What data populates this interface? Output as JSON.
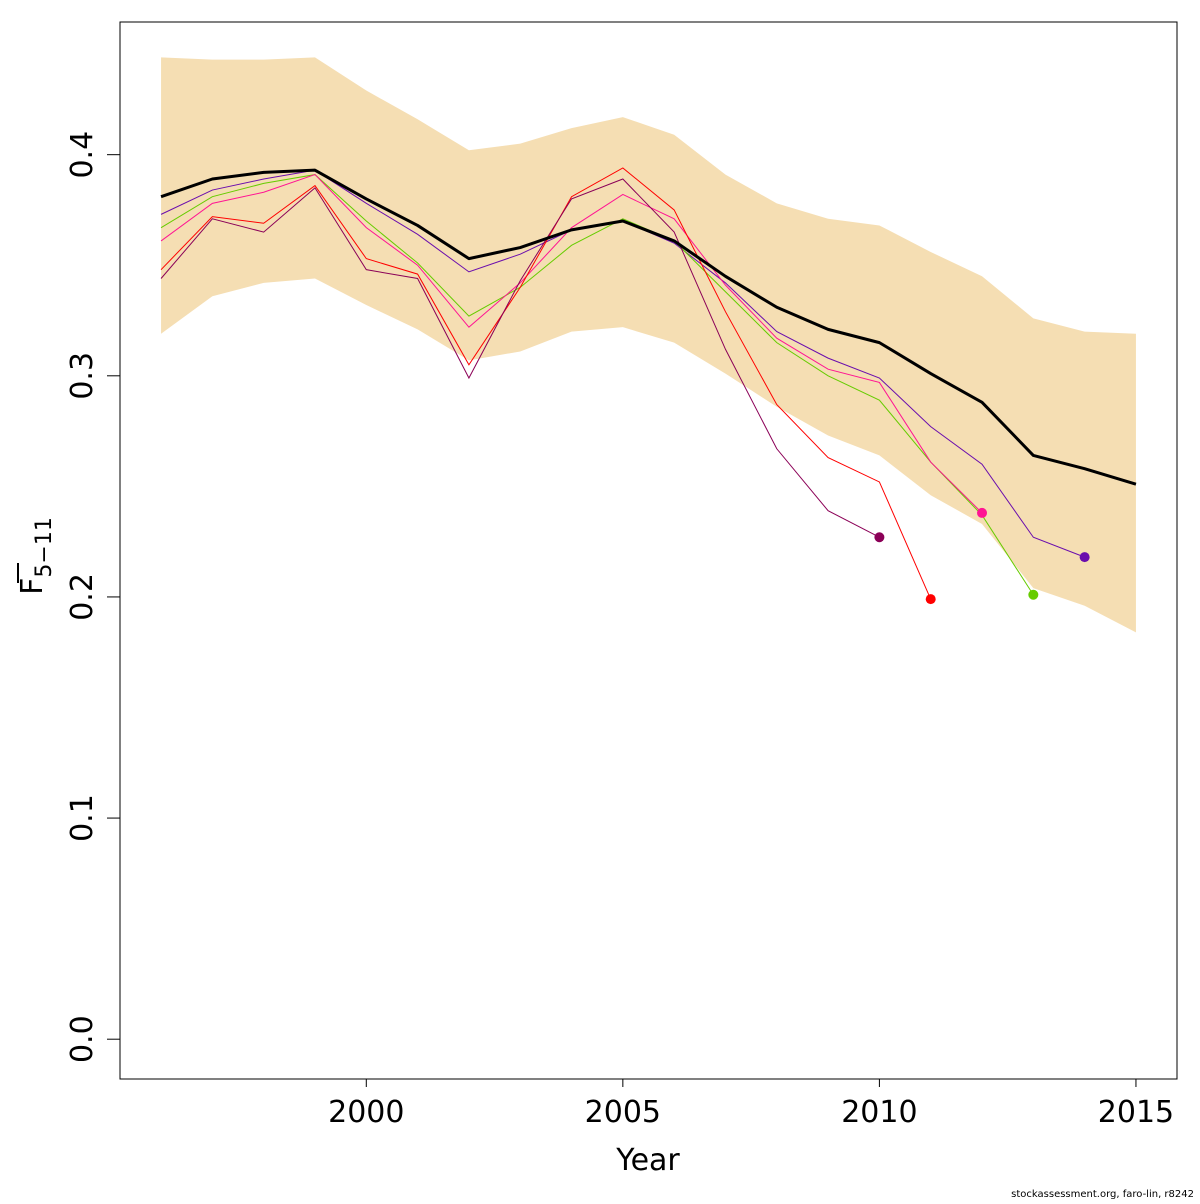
{
  "chart_data": {
    "type": "line",
    "xlabel": "Year",
    "ylabel": "F",
    "ylabel_sub": "5−11",
    "xlim": [
      1995.2,
      2015.8
    ],
    "ylim": [
      -0.018,
      0.46
    ],
    "x_ticks": [
      2000,
      2005,
      2010,
      2015
    ],
    "y_ticks": [
      0.0,
      0.1,
      0.2,
      0.3,
      0.4
    ],
    "x_tick_labels": [
      "2000",
      "2005",
      "2010",
      "2015"
    ],
    "y_tick_labels": [
      "0.0",
      "0.1",
      "0.2",
      "0.3",
      "0.4"
    ],
    "grid": false,
    "credit": "stockassessment.org, faro-lin, r8242",
    "colors": {
      "band": "#f5deb3",
      "base": "#000000"
    },
    "band": {
      "x": [
        1996,
        1997,
        1998,
        1999,
        2000,
        2001,
        2002,
        2003,
        2004,
        2005,
        2006,
        2007,
        2008,
        2009,
        2010,
        2011,
        2012,
        2013,
        2014,
        2015
      ],
      "upper": [
        0.444,
        0.443,
        0.443,
        0.444,
        0.429,
        0.416,
        0.402,
        0.405,
        0.412,
        0.417,
        0.409,
        0.391,
        0.378,
        0.371,
        0.368,
        0.356,
        0.345,
        0.326,
        0.32,
        0.319
      ],
      "lower": [
        0.319,
        0.336,
        0.342,
        0.344,
        0.332,
        0.321,
        0.307,
        0.311,
        0.32,
        0.322,
        0.315,
        0.301,
        0.286,
        0.273,
        0.264,
        0.246,
        0.233,
        0.204,
        0.196,
        0.184
      ]
    },
    "base": {
      "x": [
        1996,
        1997,
        1998,
        1999,
        2000,
        2001,
        2002,
        2003,
        2004,
        2005,
        2006,
        2007,
        2008,
        2009,
        2010,
        2011,
        2012,
        2013,
        2014,
        2015
      ],
      "values": [
        0.381,
        0.389,
        0.392,
        0.393,
        0.38,
        0.368,
        0.353,
        0.358,
        0.366,
        0.37,
        0.361,
        0.345,
        0.331,
        0.321,
        0.315,
        0.301,
        0.288,
        0.264,
        0.258,
        0.251
      ]
    },
    "series": [
      {
        "color": "#6a0dad",
        "x": [
          1996,
          1997,
          1998,
          1999,
          2000,
          2001,
          2002,
          2003,
          2004,
          2005,
          2006,
          2007,
          2008,
          2009,
          2010,
          2011,
          2012,
          2013,
          2014
        ],
        "values": [
          0.373,
          0.384,
          0.389,
          0.393,
          0.378,
          0.364,
          0.347,
          0.355,
          0.366,
          0.37,
          0.36,
          0.342,
          0.32,
          0.308,
          0.299,
          0.277,
          0.26,
          0.227,
          0.218
        ]
      },
      {
        "color": "#66cc00",
        "x": [
          1996,
          1997,
          1998,
          1999,
          2000,
          2001,
          2002,
          2003,
          2004,
          2005,
          2006,
          2007,
          2008,
          2009,
          2010,
          2011,
          2012,
          2013
        ],
        "values": [
          0.367,
          0.381,
          0.387,
          0.391,
          0.37,
          0.351,
          0.327,
          0.34,
          0.359,
          0.371,
          0.361,
          0.338,
          0.315,
          0.3,
          0.289,
          0.261,
          0.237,
          0.201
        ]
      },
      {
        "color": "#ff1493",
        "x": [
          1996,
          1997,
          1998,
          1999,
          2000,
          2001,
          2002,
          2003,
          2004,
          2005,
          2006,
          2007,
          2008,
          2009,
          2010,
          2011,
          2012
        ],
        "values": [
          0.361,
          0.378,
          0.383,
          0.391,
          0.367,
          0.35,
          0.322,
          0.342,
          0.367,
          0.382,
          0.371,
          0.341,
          0.317,
          0.303,
          0.297,
          0.261,
          0.238
        ]
      },
      {
        "color": "#ff0000",
        "x": [
          1996,
          1997,
          1998,
          1999,
          2000,
          2001,
          2002,
          2003,
          2004,
          2005,
          2006,
          2007,
          2008,
          2009,
          2010,
          2011
        ],
        "values": [
          0.348,
          0.372,
          0.369,
          0.386,
          0.353,
          0.346,
          0.305,
          0.34,
          0.381,
          0.394,
          0.375,
          0.329,
          0.287,
          0.263,
          0.252,
          0.199
        ]
      },
      {
        "color": "#8b0057",
        "x": [
          1996,
          1997,
          1998,
          1999,
          2000,
          2001,
          2002,
          2003,
          2004,
          2005,
          2006,
          2007,
          2008,
          2009,
          2010
        ],
        "values": [
          0.344,
          0.371,
          0.365,
          0.385,
          0.348,
          0.344,
          0.299,
          0.343,
          0.38,
          0.389,
          0.365,
          0.312,
          0.267,
          0.239,
          0.227
        ]
      }
    ]
  }
}
